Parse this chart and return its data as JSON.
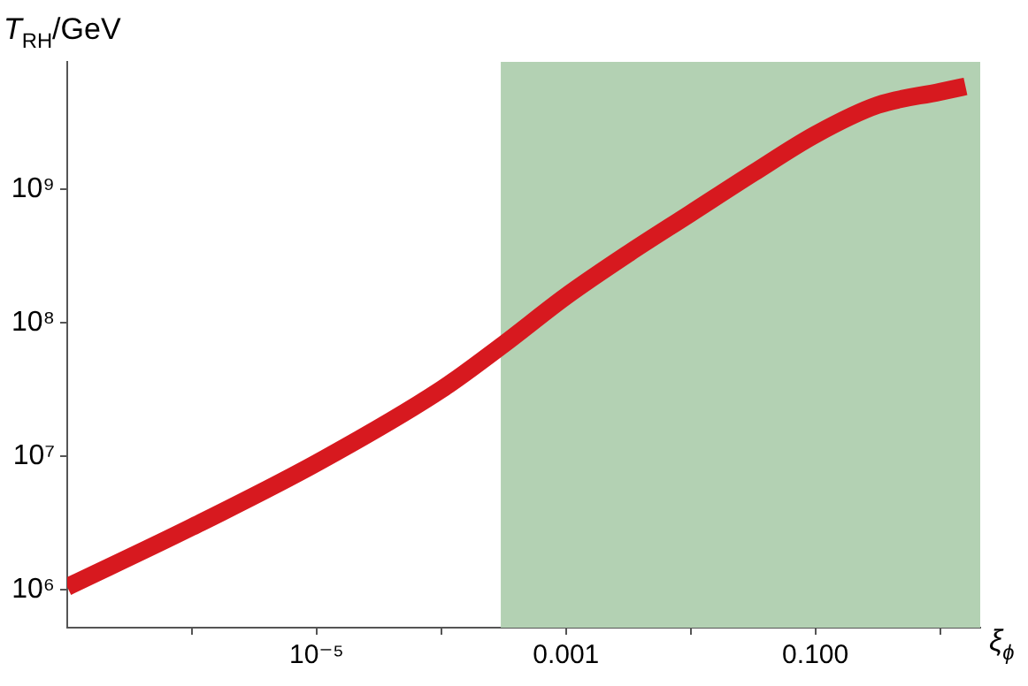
{
  "chart_data": {
    "type": "line",
    "xlabel": "ξ$_{ϕ}$",
    "ylabel": "T$_{RH}$/GeV",
    "log": "xy",
    "grid": false,
    "legend": false,
    "marker": "none",
    "line_style": "solid",
    "xlim": [
      1e-07,
      2.1
    ],
    "ylim": [
      520000.0,
      9000000000.0
    ],
    "xticks": [
      {
        "value": 1e-06,
        "label": null
      },
      {
        "value": 1e-05,
        "label": "10⁻⁵"
      },
      {
        "value": 0.0001,
        "label": null
      },
      {
        "value": 0.001,
        "label": "0.001"
      },
      {
        "value": 0.01,
        "label": null
      },
      {
        "value": 0.1,
        "label": "0.100"
      },
      {
        "value": 1,
        "label": null
      }
    ],
    "yticks": [
      {
        "value": 1000000.0,
        "label": "10⁶"
      },
      {
        "value": 10000000.0,
        "label": "10⁷"
      },
      {
        "value": 100000000.0,
        "label": "10⁸"
      },
      {
        "value": 1000000000.0,
        "label": "10⁹"
      }
    ],
    "bands": [
      {
        "axis": "x",
        "from": 0.0003,
        "to": 2.1,
        "color": "#b3d1b3"
      }
    ],
    "x": [
      1e-07,
      1e-06,
      1e-05,
      0.0001,
      0.000316,
      0.001,
      0.00316,
      0.01,
      0.0316,
      0.1,
      0.316,
      1,
      1.6
    ],
    "series": [
      {
        "color": "#d7191f",
        "values": [
          1050000.0,
          2950000.0,
          8900000.0,
          31600000.0,
          69000000.0,
          158000000.0,
          330000000.0,
          660000000.0,
          1320000000.0,
          2570000000.0,
          4270000000.0,
          5370000000.0,
          5900000000.0
        ]
      }
    ]
  }
}
